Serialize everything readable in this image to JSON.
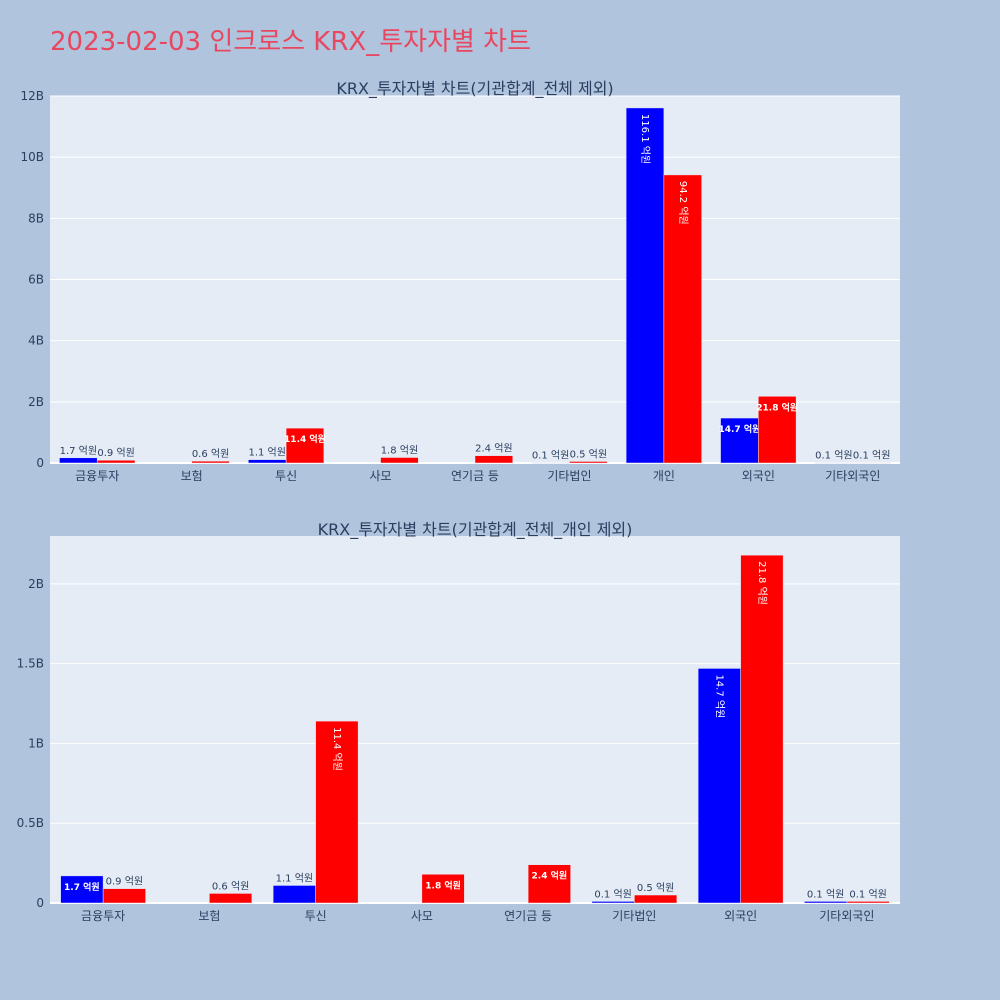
{
  "page": {
    "title": "2023-02-03 인크로스 KRX_투자자별 차트",
    "colors": {
      "background": "#b0c4de",
      "plot_background": "#e5ecf6",
      "title": "#e8475f",
      "buy": "#0000ff",
      "sell": "#ff0000"
    }
  },
  "chart_data": [
    {
      "type": "bar",
      "title": "KRX_투자자별 차트(기관합계_전체 제외)",
      "categories": [
        "금융투자",
        "보험",
        "투신",
        "사모",
        "연기금 등",
        "기타법인",
        "개인",
        "외국인",
        "기타외국인"
      ],
      "series": [
        {
          "color": "#0000ff",
          "values": [
            170000000,
            0,
            110000000,
            0,
            0,
            10000000,
            11610000000,
            1470000000,
            10000000
          ],
          "labels": [
            "1.7 억원",
            "",
            "1.1 억원",
            "",
            "",
            "0.1 억원",
            "116.1 억원",
            "14.7 억원",
            "0.1 억원"
          ]
        },
        {
          "color": "#ff0000",
          "values": [
            90000000,
            60000000,
            1140000000,
            180000000,
            240000000,
            50000000,
            9420000000,
            2180000000,
            10000000
          ],
          "labels": [
            "0.9 억원",
            "0.6 억원",
            "11.4 억원",
            "1.8 억원",
            "2.4 억원",
            "0.5 억원",
            "94.2 억원",
            "21.8 억원",
            "0.1 억원"
          ]
        }
      ],
      "ylim": [
        0,
        12000000000
      ],
      "yticks": [
        0,
        2000000000,
        4000000000,
        6000000000,
        8000000000,
        10000000000,
        12000000000
      ],
      "ytick_labels": [
        "0",
        "2B",
        "4B",
        "6B",
        "8B",
        "10B",
        "12B"
      ],
      "grid": true
    },
    {
      "type": "bar",
      "title": "KRX_투자자별 차트(기관합계_전체_개인 제외)",
      "categories": [
        "금융투자",
        "보험",
        "투신",
        "사모",
        "연기금 등",
        "기타법인",
        "외국인",
        "기타외국인"
      ],
      "series": [
        {
          "color": "#0000ff",
          "values": [
            170000000,
            0,
            110000000,
            0,
            0,
            10000000,
            1470000000,
            10000000
          ],
          "labels": [
            "1.7 억원",
            "",
            "1.1 억원",
            "",
            "",
            "0.1 억원",
            "14.7 억원",
            "0.1 억원"
          ]
        },
        {
          "color": "#ff0000",
          "values": [
            90000000,
            60000000,
            1140000000,
            180000000,
            240000000,
            50000000,
            2180000000,
            10000000
          ],
          "labels": [
            "0.9 억원",
            "0.6 억원",
            "11.4 억원",
            "1.8 억원",
            "2.4 억원",
            "0.5 억원",
            "21.8 억원",
            "0.1 억원"
          ]
        }
      ],
      "ylim": [
        0,
        2300000000
      ],
      "yticks": [
        0,
        500000000,
        1000000000,
        1500000000,
        2000000000
      ],
      "ytick_labels": [
        "0",
        "0.5B",
        "1B",
        "1.5B",
        "2B"
      ],
      "grid": true
    }
  ]
}
